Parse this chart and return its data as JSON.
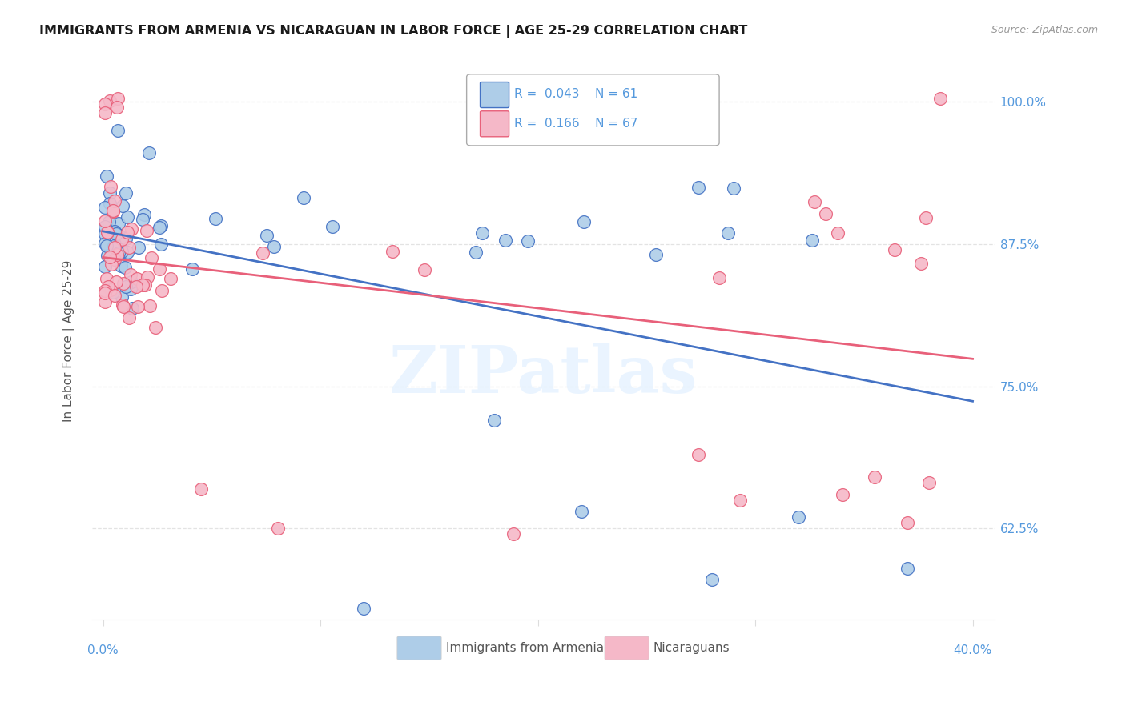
{
  "title": "IMMIGRANTS FROM ARMENIA VS NICARAGUAN IN LABOR FORCE | AGE 25-29 CORRELATION CHART",
  "source": "Source: ZipAtlas.com",
  "ylabel": "In Labor Force | Age 25-29",
  "ytick_labels": [
    "100.0%",
    "87.5%",
    "75.0%",
    "62.5%"
  ],
  "ytick_values": [
    1.0,
    0.875,
    0.75,
    0.625
  ],
  "xlim": [
    -0.005,
    0.41
  ],
  "ylim": [
    0.545,
    1.035
  ],
  "x_axis_left_label": "0.0%",
  "x_axis_right_label": "40.0%",
  "color_armenia": "#aecde8",
  "color_nicaragua": "#f5b8c8",
  "line_color_armenia": "#4472c4",
  "line_color_nicaragua": "#e8607a",
  "axis_label_color": "#5599dd",
  "title_color": "#1a1a1a",
  "source_color": "#999999",
  "grid_color": "#dddddd",
  "watermark_text": "ZIPatlas",
  "watermark_color": "#ddeeff",
  "legend_label_armenia": "Immigrants from Armenia",
  "legend_label_nicaragua": "Nicaraguans",
  "armenia_R": 0.043,
  "armenia_N": 61,
  "nicaragua_R": 0.166,
  "nicaragua_N": 67
}
